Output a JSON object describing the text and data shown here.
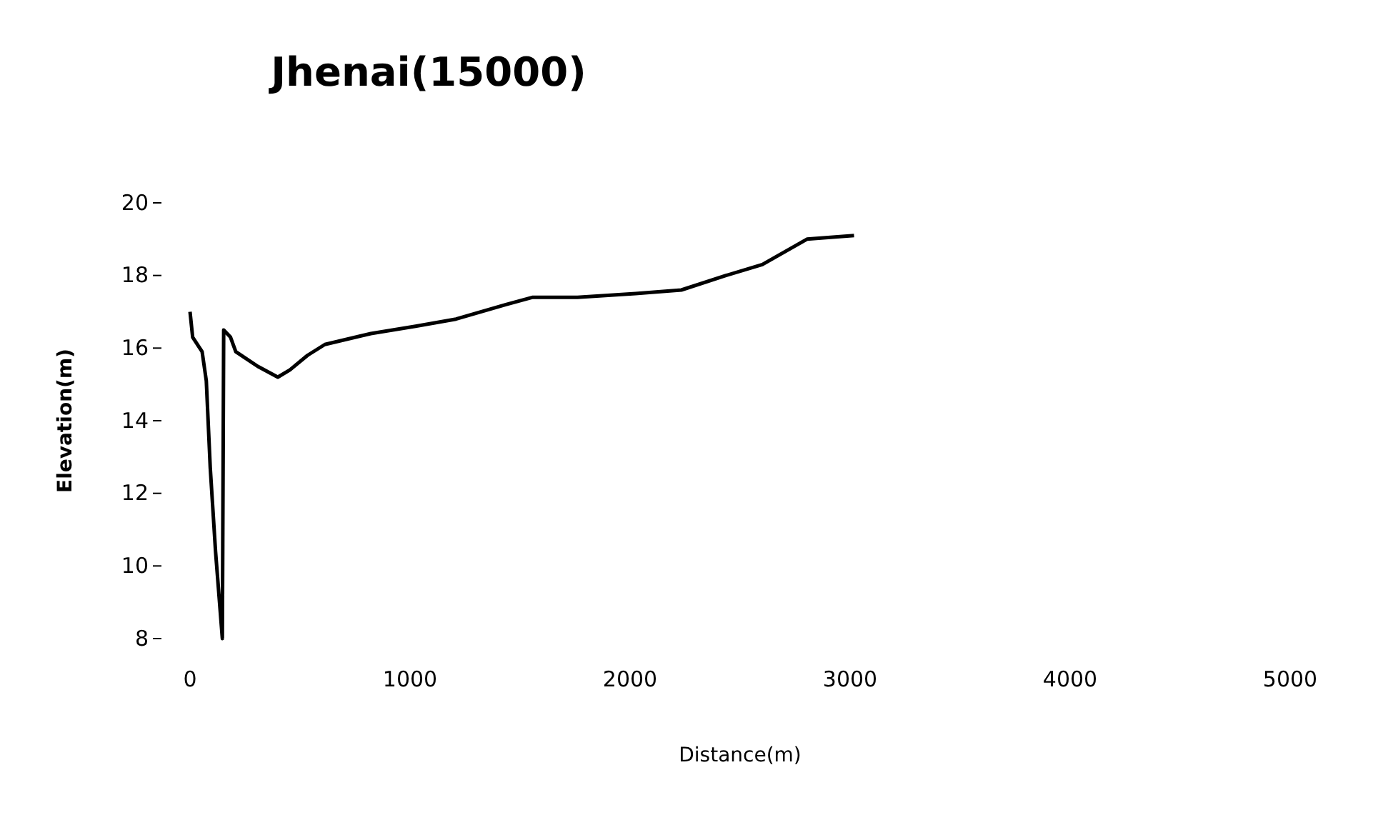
{
  "chart_data": {
    "type": "line",
    "title": "Jhenai(15000)",
    "xlabel": "Distance(m)",
    "ylabel": "Elevation(m)",
    "xlim": [
      0,
      5000
    ],
    "xticks": [
      0,
      1000,
      2000,
      3000,
      4000,
      5000
    ],
    "ylim": [
      8,
      20
    ],
    "yticks": [
      8,
      10,
      12,
      14,
      16,
      18,
      20
    ],
    "grid": false,
    "series": [
      {
        "color": "#000000",
        "x": [
          0,
          12,
          55,
          74,
          92,
          116,
          147,
          153,
          184,
          208,
          307,
          399,
          454,
          534,
          613,
          822,
          1025,
          1209,
          1436,
          1558,
          1761,
          2025,
          2233,
          2436,
          2601,
          2804,
          3018
        ],
        "values": [
          17.0,
          16.3,
          15.9,
          15.1,
          12.7,
          10.4,
          8.0,
          16.5,
          16.3,
          15.9,
          15.5,
          15.2,
          15.4,
          15.8,
          16.1,
          16.4,
          16.6,
          16.8,
          17.2,
          17.4,
          17.4,
          17.5,
          17.6,
          18.0,
          18.3,
          19.0,
          19.1
        ]
      }
    ]
  }
}
